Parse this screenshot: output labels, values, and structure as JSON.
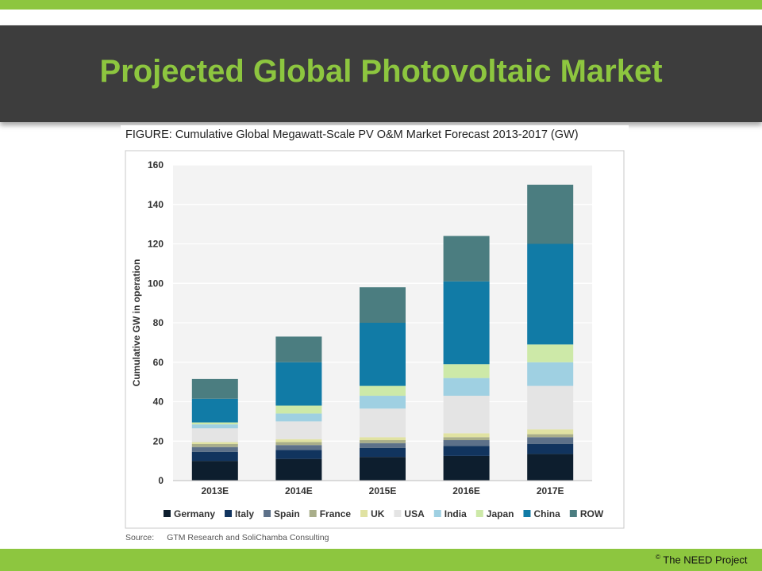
{
  "slide": {
    "title": "Projected Global Photovoltaic Market",
    "copyright_symbol": "©",
    "copyright_text": " The NEED Project"
  },
  "figure": {
    "caption": "FIGURE: Cumulative Global Megawatt-Scale PV O&M Market Forecast 2013-2017 (GW)",
    "source_label": "Source:",
    "source_text": "GTM Research and SoliChamba Consulting"
  },
  "colors": {
    "title_green": "#8dc63f",
    "title_bar": "#3d3d3d",
    "bottom_bar": "#8dc63f"
  },
  "chart_data": {
    "type": "bar",
    "stacked": true,
    "ylabel": "Cumulative GW in operation",
    "xlabel": "",
    "ylim": [
      0,
      160
    ],
    "yticks": [
      0,
      20,
      40,
      60,
      80,
      100,
      120,
      140,
      160
    ],
    "grid": true,
    "legend_position": "bottom",
    "categories": [
      "2013E",
      "2014E",
      "2015E",
      "2016E",
      "2017E"
    ],
    "series": [
      {
        "name": "Germany",
        "color": "#0d1e2e",
        "values": [
          10,
          11,
          12,
          12.5,
          13.5
        ]
      },
      {
        "name": "Italy",
        "color": "#11345e",
        "values": [
          4.5,
          4.5,
          4.5,
          5,
          5
        ]
      },
      {
        "name": "Spain",
        "color": "#5d7189",
        "values": [
          2.5,
          2.5,
          2.5,
          3,
          3.5
        ]
      },
      {
        "name": "France",
        "color": "#a9ae8a",
        "values": [
          1.5,
          1.5,
          1.5,
          1.5,
          1.5
        ]
      },
      {
        "name": "UK",
        "color": "#e0e2a2",
        "values": [
          1,
          1.5,
          1.5,
          2,
          2.5
        ]
      },
      {
        "name": "USA",
        "color": "#e4e4e4",
        "values": [
          7,
          9,
          14.5,
          19,
          22
        ]
      },
      {
        "name": "India",
        "color": "#9fd0e2",
        "values": [
          2,
          4,
          6.5,
          9,
          12
        ]
      },
      {
        "name": "Japan",
        "color": "#cde9a8",
        "values": [
          1,
          4,
          5,
          7,
          9
        ]
      },
      {
        "name": "China",
        "color": "#117ba6",
        "values": [
          12,
          22,
          32,
          42,
          51
        ]
      },
      {
        "name": "ROW",
        "color": "#4b7d80",
        "values": [
          10,
          13,
          18,
          23,
          30
        ]
      }
    ]
  }
}
